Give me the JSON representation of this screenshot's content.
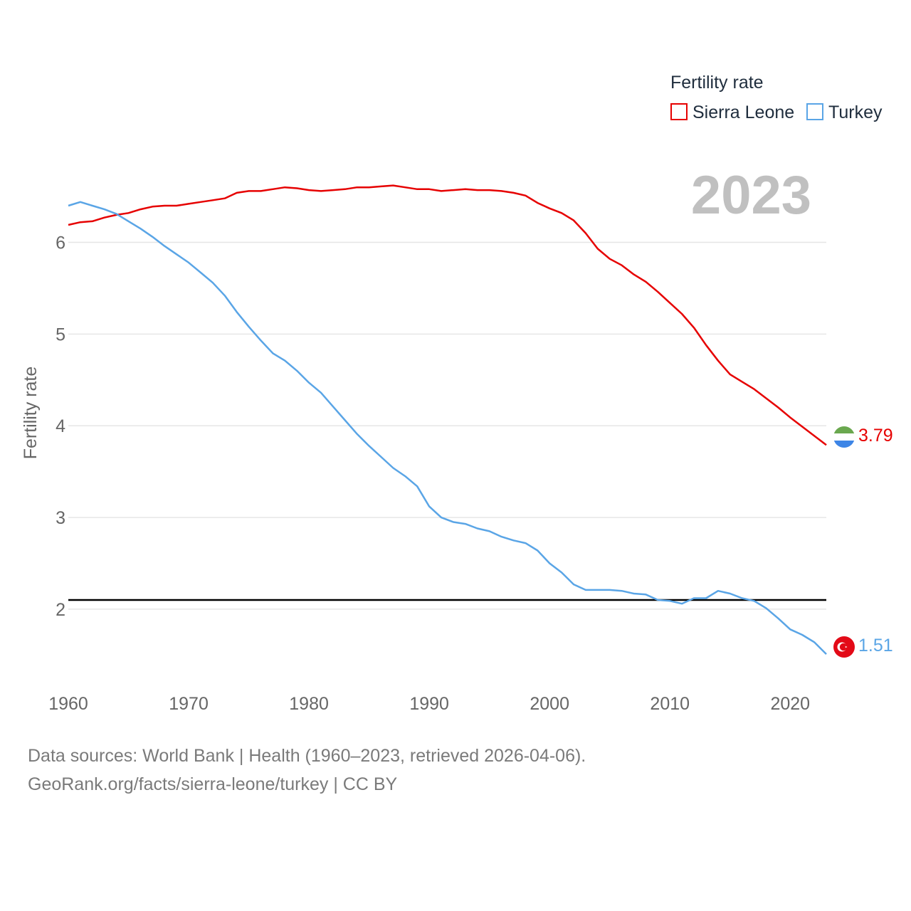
{
  "legend": {
    "title": "Fertility rate",
    "items": [
      {
        "label": "Sierra Leone",
        "color": "#e60000"
      },
      {
        "label": "Turkey",
        "color": "#5aa5e6"
      }
    ]
  },
  "year_label": "2023",
  "end_labels": {
    "sierra_leone": "3.79",
    "turkey": "1.51"
  },
  "footer": {
    "line1": "Data sources: World Bank | Health (1960–2023, retrieved 2026-04-06).",
    "line2": "GeoRank.org/facts/sierra-leone/turkey | CC BY"
  },
  "chart_data": {
    "type": "line",
    "title": "Fertility rate",
    "xlabel": "",
    "ylabel": "Fertility rate",
    "xlim": [
      1960,
      2023
    ],
    "ylim": [
      1.2,
      6.85
    ],
    "x_ticks": [
      1960,
      1970,
      1980,
      1990,
      2000,
      2010,
      2020
    ],
    "y_ticks": [
      2,
      3,
      4,
      5,
      6
    ],
    "grid": true,
    "legend_position": "top-right",
    "reference_line": {
      "y": 2.1,
      "color": "#000000"
    },
    "series": [
      {
        "name": "Sierra Leone",
        "color": "#e60000",
        "x": [
          1960,
          1961,
          1962,
          1963,
          1964,
          1965,
          1966,
          1967,
          1968,
          1969,
          1970,
          1971,
          1972,
          1973,
          1974,
          1975,
          1976,
          1977,
          1978,
          1979,
          1980,
          1981,
          1982,
          1983,
          1984,
          1985,
          1986,
          1987,
          1988,
          1989,
          1990,
          1991,
          1992,
          1993,
          1994,
          1995,
          1996,
          1997,
          1998,
          1999,
          2000,
          2001,
          2002,
          2003,
          2004,
          2005,
          2006,
          2007,
          2008,
          2009,
          2010,
          2011,
          2012,
          2013,
          2014,
          2015,
          2016,
          2017,
          2018,
          2019,
          2020,
          2021,
          2022,
          2023
        ],
        "values": [
          6.19,
          6.22,
          6.23,
          6.27,
          6.3,
          6.32,
          6.36,
          6.39,
          6.4,
          6.4,
          6.42,
          6.44,
          6.46,
          6.48,
          6.54,
          6.56,
          6.56,
          6.58,
          6.6,
          6.59,
          6.57,
          6.56,
          6.57,
          6.58,
          6.6,
          6.6,
          6.61,
          6.62,
          6.6,
          6.58,
          6.58,
          6.56,
          6.57,
          6.58,
          6.57,
          6.57,
          6.56,
          6.54,
          6.51,
          6.43,
          6.37,
          6.32,
          6.24,
          6.1,
          5.93,
          5.82,
          5.75,
          5.65,
          5.57,
          5.46,
          5.34,
          5.22,
          5.07,
          4.88,
          4.71,
          4.56,
          4.48,
          4.4,
          4.3,
          4.2,
          4.09,
          3.99,
          3.89,
          3.79
        ]
      },
      {
        "name": "Turkey",
        "color": "#5aa5e6",
        "x": [
          1960,
          1961,
          1962,
          1963,
          1964,
          1965,
          1966,
          1967,
          1968,
          1969,
          1970,
          1971,
          1972,
          1973,
          1974,
          1975,
          1976,
          1977,
          1978,
          1979,
          1980,
          1981,
          1982,
          1983,
          1984,
          1985,
          1986,
          1987,
          1988,
          1989,
          1990,
          1991,
          1992,
          1993,
          1994,
          1995,
          1996,
          1997,
          1998,
          1999,
          2000,
          2001,
          2002,
          2003,
          2004,
          2005,
          2006,
          2007,
          2008,
          2009,
          2010,
          2011,
          2012,
          2013,
          2014,
          2015,
          2016,
          2017,
          2018,
          2019,
          2020,
          2021,
          2022,
          2023
        ],
        "values": [
          6.4,
          6.44,
          6.4,
          6.36,
          6.31,
          6.23,
          6.15,
          6.06,
          5.96,
          5.87,
          5.78,
          5.67,
          5.56,
          5.42,
          5.24,
          5.08,
          4.93,
          4.79,
          4.71,
          4.6,
          4.47,
          4.36,
          4.21,
          4.06,
          3.91,
          3.78,
          3.66,
          3.54,
          3.45,
          3.34,
          3.12,
          3.0,
          2.95,
          2.93,
          2.88,
          2.85,
          2.79,
          2.75,
          2.72,
          2.64,
          2.5,
          2.4,
          2.27,
          2.21,
          2.21,
          2.21,
          2.2,
          2.17,
          2.16,
          2.1,
          2.09,
          2.06,
          2.12,
          2.12,
          2.2,
          2.17,
          2.12,
          2.09,
          2.01,
          1.9,
          1.78,
          1.72,
          1.64,
          1.51
        ]
      }
    ]
  }
}
